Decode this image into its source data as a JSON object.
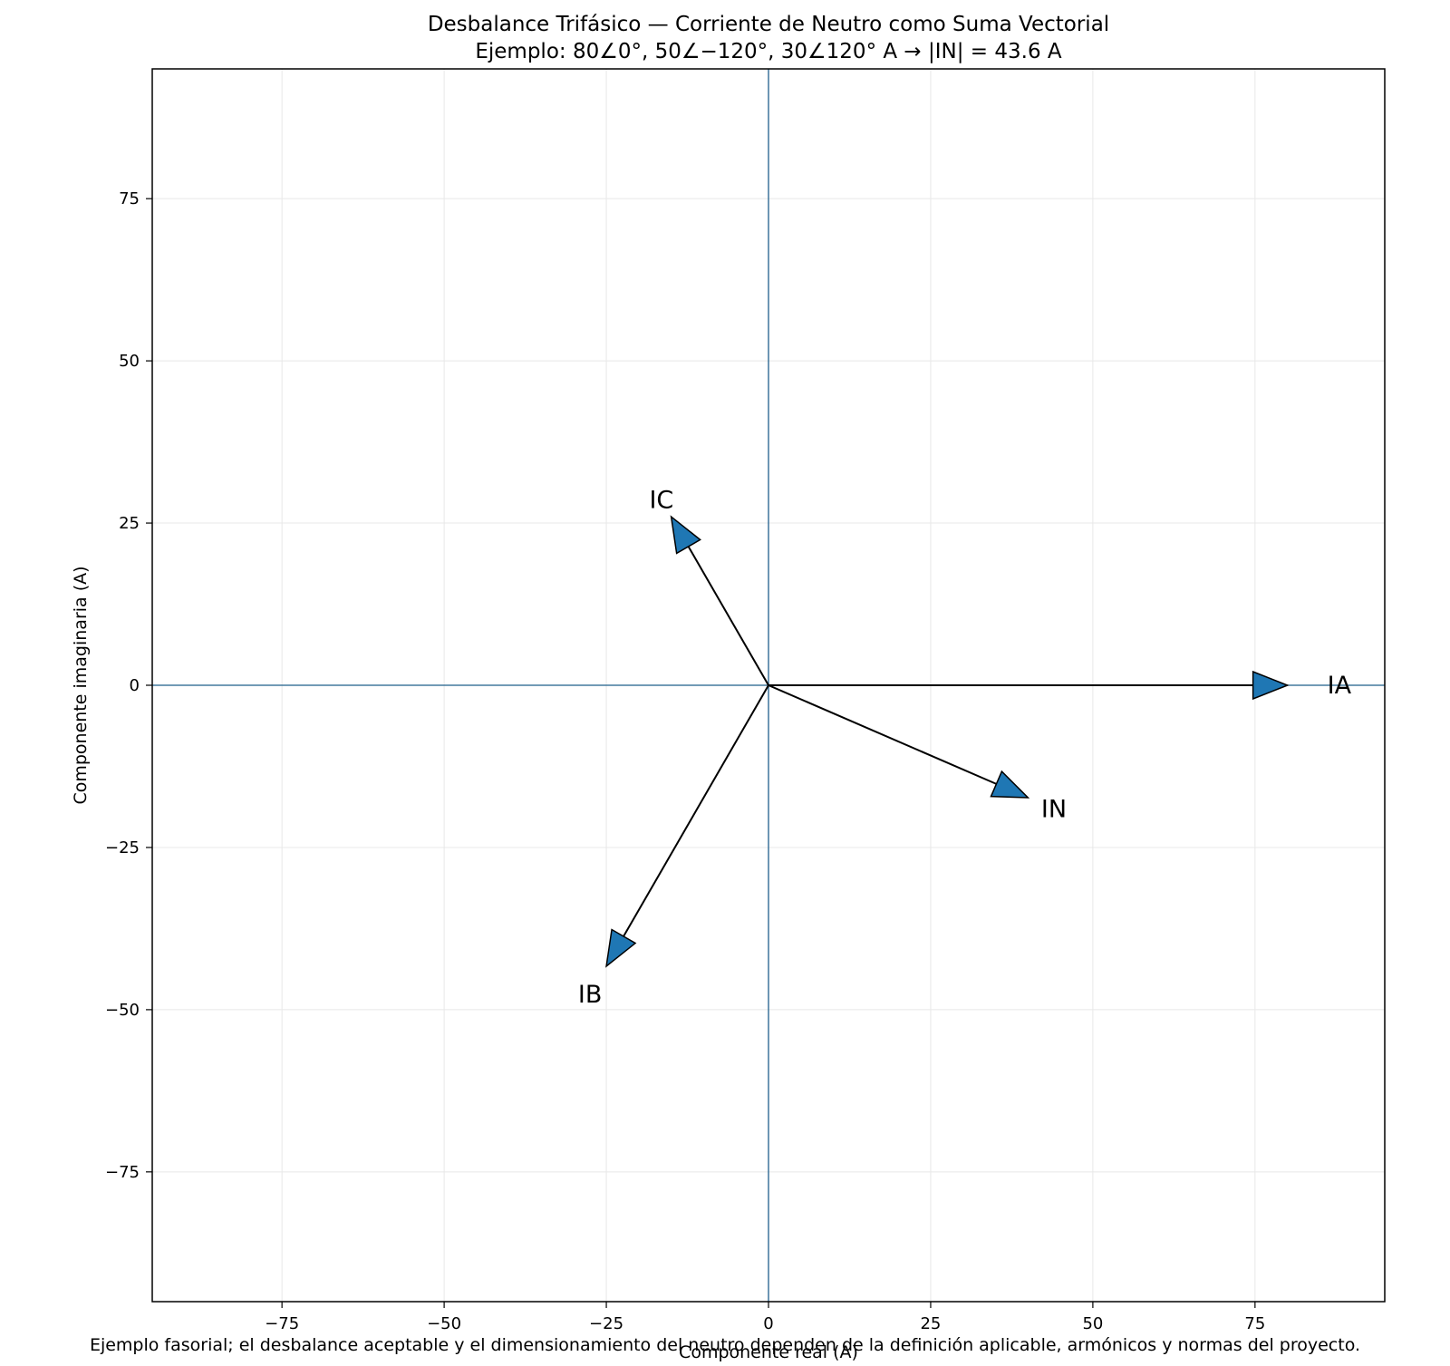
{
  "chart_data": {
    "type": "phasor",
    "title": "Desbalance Trifásico — Corriente de Neutro como Suma Vectorial",
    "subtitle": "Ejemplo: 80∠0°, 50∠−120°, 30∠120° A → |IN| = 43.6 A",
    "xlabel": "Componente real (A)",
    "ylabel": "Componente imaginaria (A)",
    "xlim": [
      -95,
      95
    ],
    "ylim": [
      -95,
      95
    ],
    "ticks": [
      -75,
      -50,
      -25,
      0,
      25,
      50,
      75
    ],
    "tick_labels": [
      "−75",
      "−50",
      "−25",
      "0",
      "25",
      "50",
      "75"
    ],
    "grid": true,
    "reference_axes": true,
    "vectors": [
      {
        "name": "IA",
        "magnitude": 80,
        "angle_deg": 0,
        "x": 80,
        "y": 0
      },
      {
        "name": "IB",
        "magnitude": 50,
        "angle_deg": -120,
        "x": -25,
        "y": -43.3
      },
      {
        "name": "IC",
        "magnitude": 30,
        "angle_deg": 120,
        "x": -15,
        "y": 25.98
      },
      {
        "name": "IN",
        "magnitude": 43.6,
        "angle_deg": -23.4,
        "x": 40,
        "y": -17.32
      }
    ],
    "colors": {
      "arrow_fill": "#1f77b4",
      "axis_line": "#1f5f8b",
      "grid": "#e8e8e8"
    }
  },
  "footnote": "Ejemplo fasorial; el desbalance aceptable y el dimensionamiento del neutro dependen de la definición aplicable, armónicos y normas del proyecto."
}
